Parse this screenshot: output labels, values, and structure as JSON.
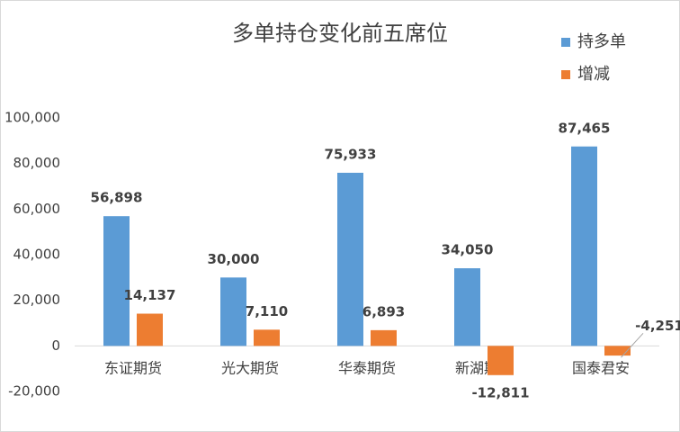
{
  "chart_data": {
    "type": "bar",
    "title": "多单持仓变化前五席位",
    "categories": [
      "东证期货",
      "光大期货",
      "华泰期货",
      "新湖期货",
      "国泰君安"
    ],
    "series": [
      {
        "name": "持多单",
        "color": "#5b9bd5",
        "values": [
          56898,
          30000,
          75933,
          34050,
          87465
        ],
        "value_labels": [
          "56,898",
          "30,000",
          "75,933",
          "34,050",
          "87,465"
        ]
      },
      {
        "name": "增减",
        "color": "#ed7d31",
        "values": [
          14137,
          7110,
          6893,
          -12811,
          -4251
        ],
        "value_labels": [
          "14,137",
          "7,110",
          "6,893",
          "-12,811",
          "-4,251"
        ]
      }
    ],
    "ylim": [
      -20000,
      100000
    ],
    "yticks": [
      {
        "value": -20000,
        "label": "-20,000"
      },
      0,
      {
        "value": 20000,
        "label": "20,000"
      },
      {
        "value": 40000,
        "label": "40,000"
      },
      {
        "value": 60000,
        "label": "60,000"
      },
      {
        "value": 80000,
        "label": "80,000"
      },
      {
        "value": 100000,
        "label": "100,000"
      }
    ],
    "grid": false,
    "legend": "top-right"
  }
}
